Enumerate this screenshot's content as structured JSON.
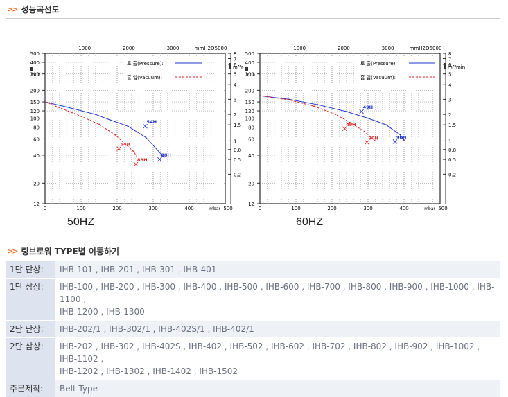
{
  "sections": {
    "performance_title": "성능곡선도",
    "types_title": "링브로워 TYPE별 이동하기"
  },
  "chart_labels": {
    "axis_top_unit": "mmH2O",
    "axis_left_unit": "m³/h",
    "axis_right_unit": "m³/min",
    "axis_bottom_unit": "mbar",
    "legend_pressure": "토 출(Pressure):",
    "legend_vacuum": "흡 입(Vacuum):"
  },
  "chart_data": [
    {
      "type": "line",
      "title": "50HZ",
      "xlabel": "mbar",
      "ylabel": "m³/h",
      "xlim": [
        0,
        500
      ],
      "ylim": [
        12,
        500
      ],
      "yscale": "log",
      "x_ticks": [
        "0",
        "100",
        "200",
        "300",
        "400",
        "500"
      ],
      "top_ticks": [
        "1000",
        "2000",
        "3000",
        "mmH2O",
        "5000"
      ],
      "y_ticks": [
        "500",
        "400",
        "300",
        "200",
        "150",
        "120",
        "100",
        "80",
        "60",
        "40",
        "20",
        "12"
      ],
      "right_ticks": [
        "8",
        "7",
        "6",
        "5",
        "4",
        "3",
        "2",
        "1.5",
        "1",
        "0.8",
        "0.5",
        "0.2"
      ],
      "grid": true,
      "legend": "top-right",
      "series": [
        {
          "name": "토 출(Pressure)",
          "color": "#2233cc",
          "dash": "solid",
          "x": [
            0,
            60,
            140,
            180,
            230,
            280,
            330
          ],
          "y": [
            150,
            132,
            110,
            96,
            82,
            62,
            38
          ]
        },
        {
          "name": "흡 입(Vacuum)",
          "color": "#dd2222",
          "dash": "dashed",
          "x": [
            0,
            40,
            100,
            150,
            195,
            245,
            260
          ],
          "y": [
            150,
            130,
            105,
            86,
            66,
            44,
            36
          ]
        }
      ],
      "annotations": [
        {
          "text": "54H",
          "color": "#2233cc",
          "x": 278,
          "y": 82
        },
        {
          "text": "88H",
          "color": "#2233cc",
          "x": 318,
          "y": 36
        },
        {
          "text": "54H",
          "color": "#dd2222",
          "x": 205,
          "y": 47
        },
        {
          "text": "88H",
          "color": "#dd2222",
          "x": 252,
          "y": 32
        }
      ]
    },
    {
      "type": "line",
      "title": "60HZ",
      "xlabel": "mbar",
      "ylabel": "m³/h",
      "xlim": [
        0,
        500
      ],
      "ylim": [
        12,
        500
      ],
      "yscale": "log",
      "x_ticks": [
        "0",
        "100",
        "200",
        "300",
        "400",
        "500"
      ],
      "top_ticks": [
        "1000",
        "2000",
        "3000",
        "mmH2O",
        "5000"
      ],
      "y_ticks": [
        "500",
        "400",
        "300",
        "200",
        "150",
        "120",
        "100",
        "80",
        "60",
        "40",
        "20",
        "12"
      ],
      "right_ticks": [
        "8",
        "7",
        "6",
        "5",
        "4",
        "3",
        "2",
        "1.5",
        "1",
        "0.8",
        "0.5",
        "0.2"
      ],
      "grid": true,
      "legend": "top-right",
      "series": [
        {
          "name": "토 출(Pressure)",
          "color": "#2233cc",
          "dash": "solid",
          "x": [
            0,
            80,
            160,
            240,
            300,
            350,
            390,
            400
          ],
          "y": [
            175,
            160,
            140,
            118,
            100,
            85,
            66,
            58
          ]
        },
        {
          "name": "흡 입(Vacuum)",
          "color": "#dd2222",
          "dash": "dashed",
          "x": [
            0,
            80,
            150,
            210,
            250,
            290,
            320
          ],
          "y": [
            175,
            158,
            135,
            110,
            90,
            72,
            57
          ]
        }
      ],
      "annotations": [
        {
          "text": "49H",
          "color": "#2233cc",
          "x": 282,
          "y": 118
        },
        {
          "text": "90H",
          "color": "#2233cc",
          "x": 375,
          "y": 56
        },
        {
          "text": "49H",
          "color": "#dd2222",
          "x": 235,
          "y": 77
        },
        {
          "text": "90H",
          "color": "#dd2222",
          "x": 297,
          "y": 55
        }
      ]
    }
  ],
  "types_table": [
    {
      "label": "1단 단상:",
      "lines": [
        "IHB-101 , IHB-201 , IHB-301 , IHB-401"
      ]
    },
    {
      "label": "1단 삼상:",
      "lines": [
        "IHB-100 , IHB-200 , IHB-300 , IHB-400 , IHB-500 , IHB-600 , IHB-700 , IHB-800 , IHB-900 , IHB-1000 , IHB-",
        "1100 ,",
        "IHB-1200 , IHB-1300"
      ]
    },
    {
      "label": "2단 단상:",
      "lines": [
        "IHB-202/1 , IHB-302/1 , IHB-402S/1 , IHB-402/1"
      ]
    },
    {
      "label": "2단 삼상:",
      "lines": [
        "IHB-202 , IHB-302 , IHB-402S , IHB-402 , IHB-502 , IHB-602 , IHB-702 , IHB-802 , IHB-902 , IHB-1002 ,",
        "IHB-1102 ,",
        "IHB-1202 , IHB-1302 , IHB-1402 , IHB-1502"
      ]
    },
    {
      "label": "주문제작:",
      "lines": [
        "Belt Type"
      ]
    }
  ]
}
